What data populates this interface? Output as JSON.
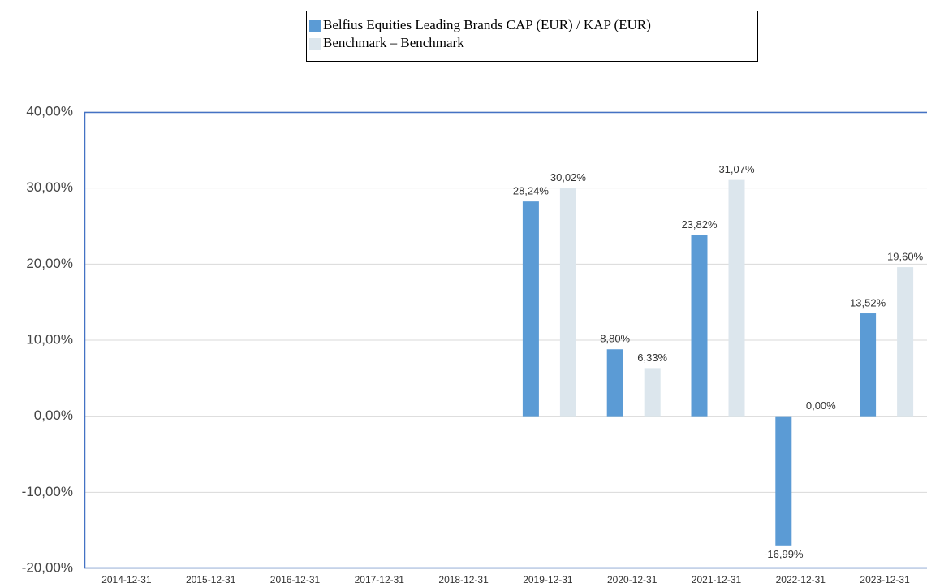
{
  "chart_data": {
    "type": "bar",
    "categories": [
      "2014-12-31",
      "2015-12-31",
      "2016-12-31",
      "2017-12-31",
      "2018-12-31",
      "2019-12-31",
      "2020-12-31",
      "2021-12-31",
      "2022-12-31",
      "2023-12-31"
    ],
    "series": [
      {
        "name": "Belfius Equities Leading Brands CAP (EUR) / KAP (EUR)",
        "color": "#5b9bd5",
        "values": [
          null,
          null,
          null,
          null,
          null,
          28.24,
          8.8,
          23.82,
          -16.99,
          13.52
        ],
        "value_labels": [
          null,
          null,
          null,
          null,
          null,
          "28,24%",
          "8,80%",
          "23,82%",
          "-16,99%",
          "13,52%"
        ]
      },
      {
        "name": "Benchmark – Benchmark",
        "color": "#dce6ed",
        "values": [
          null,
          null,
          null,
          null,
          null,
          30.02,
          6.33,
          31.07,
          0.0,
          19.6
        ],
        "value_labels": [
          null,
          null,
          null,
          null,
          null,
          "30,02%",
          "6,33%",
          "31,07%",
          "0,00%",
          "19,60%"
        ]
      }
    ],
    "ylim": [
      -20,
      40
    ],
    "yticks": [
      {
        "value": -20,
        "label": "-20,00%"
      },
      {
        "value": -10,
        "label": "-10,00%"
      },
      {
        "value": 0,
        "label": "0,00%"
      },
      {
        "value": 10,
        "label": "10,00%"
      },
      {
        "value": 20,
        "label": "20,00%"
      },
      {
        "value": 30,
        "label": "30,00%"
      },
      {
        "value": 40,
        "label": "40,00%"
      }
    ],
    "grid": true,
    "legend": "top"
  }
}
